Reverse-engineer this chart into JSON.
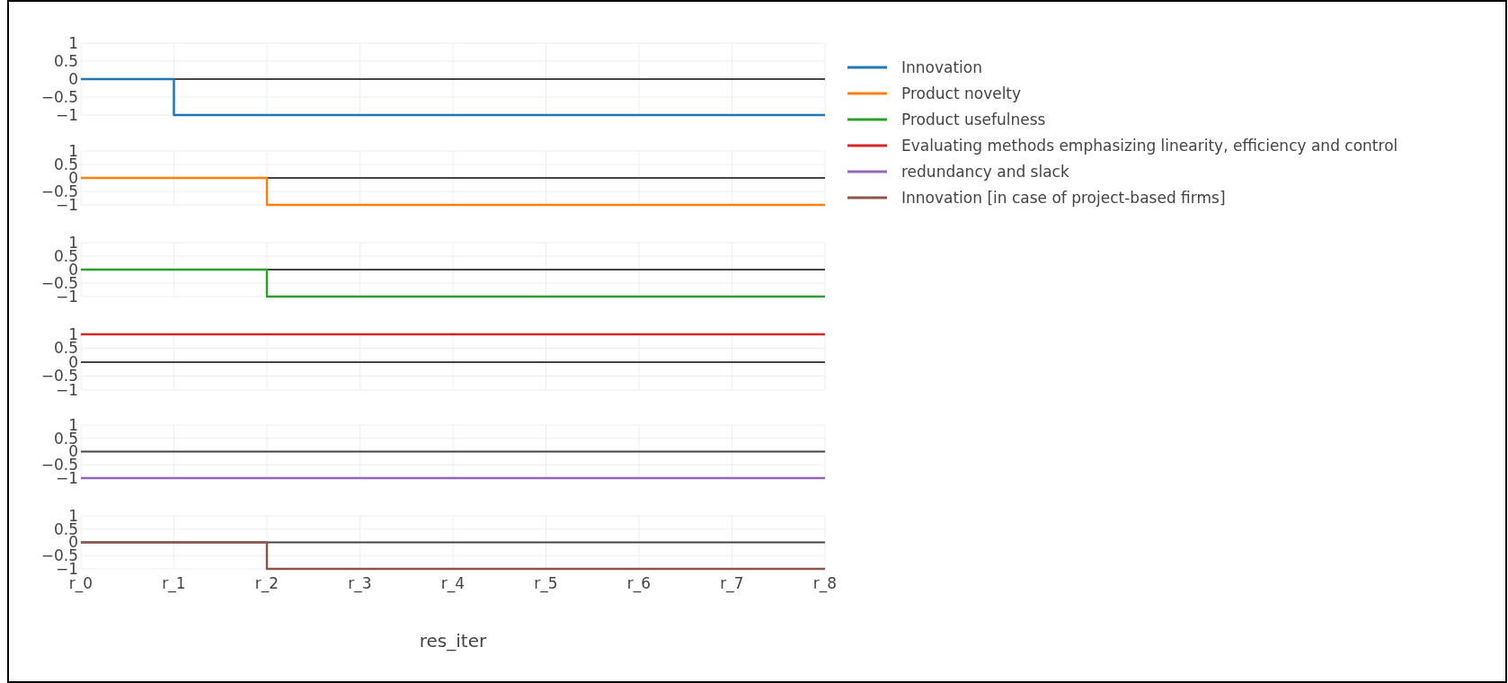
{
  "chart_data": [
    {
      "type": "step",
      "categories": [
        null,
        null,
        null,
        null,
        null,
        null,
        null,
        null,
        null
      ],
      "series": [
        {
          "name": "Innovation",
          "color": "#1f77b4",
          "values": [
            0,
            -1,
            -1,
            -1,
            -1,
            -1,
            -1,
            -1,
            -1
          ]
        }
      ],
      "ylim": [
        -1,
        1
      ],
      "yticks": [
        -1,
        -0.5,
        0,
        0.5,
        1
      ],
      "ref_lines": [
        {
          "axis": "y",
          "value": 0,
          "color": "#444444"
        }
      ],
      "grid": true,
      "legend": "right",
      "tick_labels": "y"
    },
    {
      "type": "step",
      "categories": [
        null,
        null,
        null,
        null,
        null,
        null,
        null,
        null,
        null
      ],
      "series": [
        {
          "name": "Product novelty",
          "color": "#ff7f0e",
          "values": [
            0,
            0,
            -1,
            -1,
            -1,
            -1,
            -1,
            -1,
            -1
          ]
        }
      ],
      "ylim": [
        -1,
        1
      ],
      "yticks": [
        -1,
        -0.5,
        0,
        0.5,
        1
      ],
      "ref_lines": [
        {
          "axis": "y",
          "value": 0,
          "color": "#444444"
        }
      ],
      "grid": true,
      "legend": "right",
      "tick_labels": "y"
    },
    {
      "type": "step",
      "categories": [
        null,
        null,
        null,
        null,
        null,
        null,
        null,
        null,
        null
      ],
      "series": [
        {
          "name": "Product usefulness",
          "color": "#2ca02c",
          "values": [
            0,
            0,
            -1,
            -1,
            -1,
            -1,
            -1,
            -1,
            -1
          ]
        }
      ],
      "ylim": [
        -1,
        1
      ],
      "yticks": [
        -1,
        -0.5,
        0,
        0.5,
        1
      ],
      "ref_lines": [
        {
          "axis": "y",
          "value": 0,
          "color": "#444444"
        }
      ],
      "grid": true,
      "legend": "right",
      "tick_labels": "y"
    },
    {
      "type": "step",
      "categories": [
        null,
        null,
        null,
        null,
        null,
        null,
        null,
        null,
        null
      ],
      "series": [
        {
          "name": "Evaluating methods emphasizing linearity, efficiency and control",
          "color": "#d62728",
          "values": [
            1,
            1,
            1,
            1,
            1,
            1,
            1,
            1,
            1
          ]
        }
      ],
      "ylim": [
        -1,
        1
      ],
      "yticks": [
        -1,
        -0.5,
        0,
        0.5,
        1
      ],
      "ref_lines": [
        {
          "axis": "y",
          "value": 0,
          "color": "#444444"
        }
      ],
      "grid": true,
      "legend": "right",
      "tick_labels": "y"
    },
    {
      "type": "step",
      "categories": [
        null,
        null,
        null,
        null,
        null,
        null,
        null,
        null,
        null
      ],
      "series": [
        {
          "name": "redundancy and slack",
          "color": "#9467bd",
          "values": [
            -1,
            -1,
            -1,
            -1,
            -1,
            -1,
            -1,
            -1,
            -1
          ]
        }
      ],
      "ylim": [
        -1,
        1
      ],
      "yticks": [
        -1,
        -0.5,
        0,
        0.5,
        1
      ],
      "ref_lines": [
        {
          "axis": "y",
          "value": 0,
          "color": "#444444"
        }
      ],
      "grid": true,
      "legend": "right",
      "tick_labels": "y"
    },
    {
      "type": "step",
      "categories": [
        "r_0",
        "r_1",
        "r_2",
        "r_3",
        "r_4",
        "r_5",
        "r_6",
        "r_7",
        "r_8"
      ],
      "series": [
        {
          "name": "Innovation [in case of project-based firms]",
          "color": "#8c564b",
          "values": [
            0,
            0,
            -1,
            -1,
            -1,
            -1,
            -1,
            -1,
            -1
          ]
        }
      ],
      "xlabel": "res_iter",
      "ylim": [
        -1,
        1
      ],
      "yticks": [
        -1,
        -0.5,
        0,
        0.5,
        1
      ],
      "ref_lines": [
        {
          "axis": "y",
          "value": 0,
          "color": "#444444"
        }
      ],
      "grid": true,
      "legend": "right"
    }
  ]
}
